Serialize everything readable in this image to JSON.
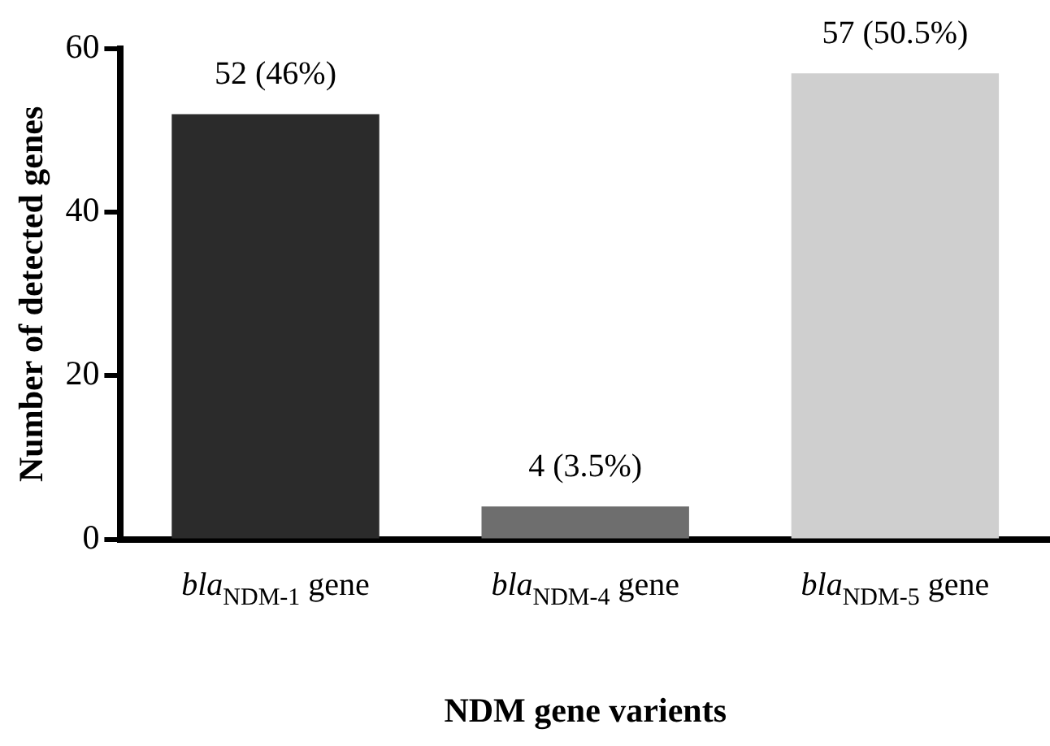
{
  "chart_data": {
    "type": "bar",
    "xlabel": "NDM gene varients",
    "ylabel": "Number of detected genes",
    "categories": [
      "bla$_{NDM-1}$ gene",
      "bla$_{NDM-4}$ gene",
      "bla$_{NDM-5}$ gene"
    ],
    "values": [
      52,
      4,
      57
    ],
    "colors": [
      "#2b2b2b",
      "#6e6e6e",
      "#cfcfcf"
    ],
    "value_labels": [
      "52 (46%)",
      "4 (3.5%)",
      "57 (50.5%)"
    ],
    "ylim": [
      0,
      60
    ],
    "yticks": [
      0,
      20,
      40,
      60
    ],
    "grid": false,
    "legend": false
  }
}
